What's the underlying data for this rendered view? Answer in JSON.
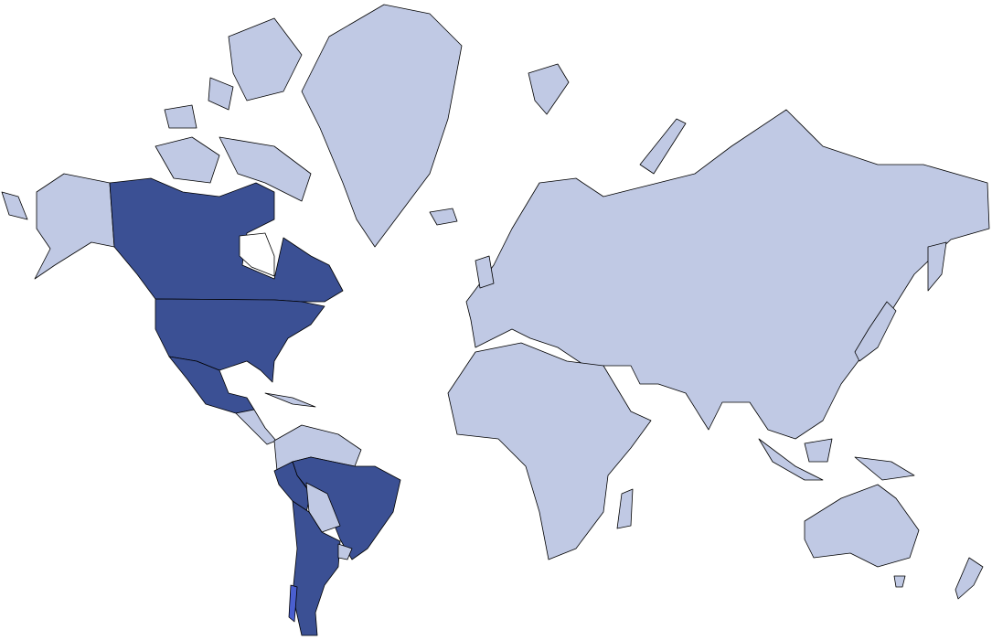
{
  "map": {
    "projection": "mercator",
    "colors": {
      "background": "#ffffff",
      "highlighted": "#3b5094",
      "default": "#c0c9e4",
      "accent": "#4a5fd0",
      "border": "#000000"
    }
  }
}
